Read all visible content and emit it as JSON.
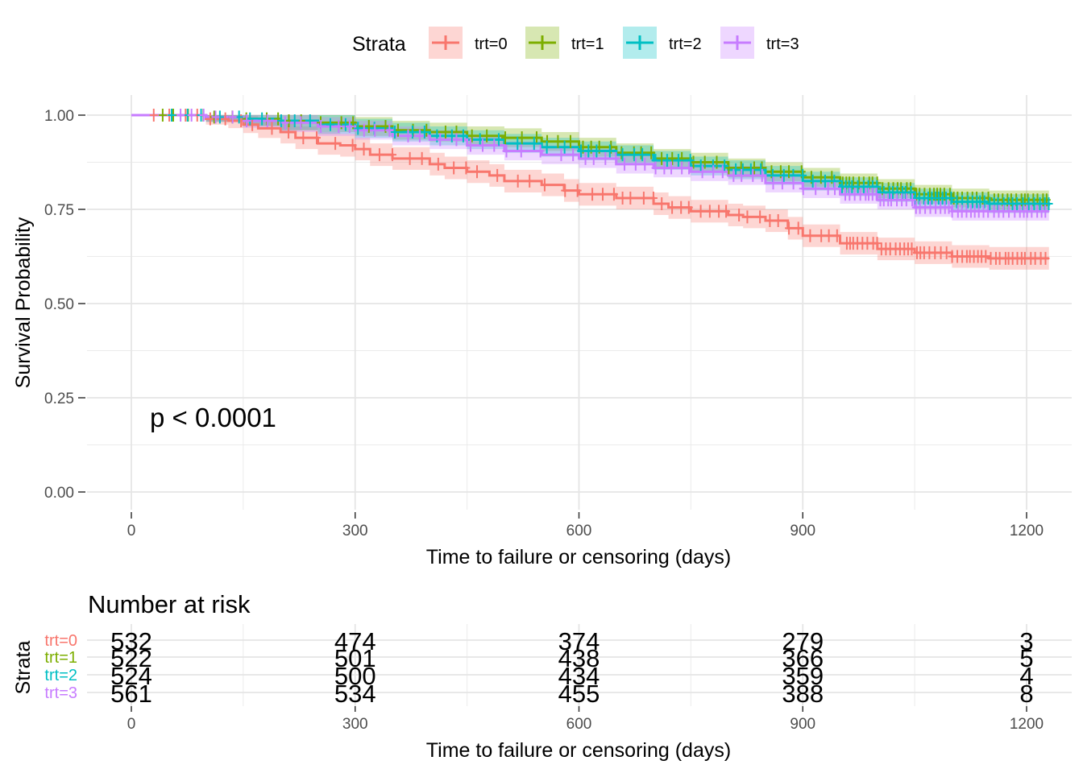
{
  "chart_data": [
    {
      "type": "line",
      "subtype": "kaplan-meier",
      "xlabel": "Time to failure or censoring (days)",
      "ylabel": "Survival Probability",
      "xlim": [
        -20,
        1250
      ],
      "ylim": [
        0,
        1
      ],
      "x_ticks": [
        "0",
        "300",
        "600",
        "900",
        "1200"
      ],
      "y_ticks": [
        "0.00",
        "0.25",
        "0.50",
        "0.75",
        "1.00"
      ],
      "grid": true,
      "annotation": "p < 0.0001",
      "legend": {
        "title": "Strata",
        "position": "top",
        "entries": [
          "trt=0",
          "trt=1",
          "trt=2",
          "trt=3"
        ]
      },
      "series": [
        {
          "name": "trt=0",
          "color": "#F8766D",
          "x": [
            0,
            100,
            130,
            150,
            170,
            200,
            220,
            250,
            280,
            300,
            320,
            350,
            400,
            420,
            450,
            480,
            500,
            550,
            580,
            600,
            650,
            700,
            720,
            750,
            800,
            820,
            850,
            880,
            900,
            950,
            1000,
            1050,
            1100,
            1150,
            1230
          ],
          "y": [
            1.0,
            0.99,
            0.985,
            0.975,
            0.965,
            0.955,
            0.94,
            0.925,
            0.92,
            0.91,
            0.895,
            0.885,
            0.87,
            0.86,
            0.85,
            0.84,
            0.825,
            0.815,
            0.8,
            0.79,
            0.78,
            0.765,
            0.755,
            0.745,
            0.735,
            0.73,
            0.72,
            0.7,
            0.68,
            0.66,
            0.645,
            0.635,
            0.625,
            0.62,
            0.62
          ],
          "ci_width": 0.03
        },
        {
          "name": "trt=1",
          "color": "#7CAE00",
          "x": [
            0,
            100,
            150,
            200,
            250,
            300,
            350,
            400,
            450,
            500,
            550,
            600,
            650,
            700,
            750,
            800,
            850,
            900,
            950,
            1000,
            1050,
            1100,
            1150,
            1230
          ],
          "y": [
            1.0,
            0.995,
            0.99,
            0.985,
            0.98,
            0.97,
            0.96,
            0.955,
            0.945,
            0.94,
            0.93,
            0.915,
            0.9,
            0.885,
            0.875,
            0.86,
            0.85,
            0.835,
            0.82,
            0.805,
            0.79,
            0.78,
            0.775,
            0.775
          ],
          "ci_width": 0.025
        },
        {
          "name": "trt=2",
          "color": "#00BFC4",
          "x": [
            0,
            100,
            150,
            200,
            250,
            300,
            350,
            400,
            450,
            500,
            550,
            600,
            650,
            700,
            750,
            800,
            850,
            900,
            950,
            1000,
            1050,
            1100,
            1150,
            1230
          ],
          "y": [
            1.0,
            0.995,
            0.99,
            0.985,
            0.975,
            0.965,
            0.955,
            0.945,
            0.935,
            0.925,
            0.915,
            0.905,
            0.895,
            0.88,
            0.865,
            0.855,
            0.84,
            0.825,
            0.81,
            0.795,
            0.78,
            0.77,
            0.765,
            0.76
          ],
          "ci_width": 0.025
        },
        {
          "name": "trt=3",
          "color": "#C77CFF",
          "x": [
            0,
            100,
            150,
            200,
            250,
            300,
            350,
            400,
            450,
            500,
            550,
            600,
            650,
            700,
            750,
            800,
            850,
            900,
            950,
            1000,
            1050,
            1100,
            1150,
            1230
          ],
          "y": [
            1.0,
            0.995,
            0.985,
            0.98,
            0.97,
            0.96,
            0.945,
            0.935,
            0.92,
            0.905,
            0.895,
            0.885,
            0.87,
            0.86,
            0.85,
            0.84,
            0.82,
            0.805,
            0.79,
            0.775,
            0.755,
            0.745,
            0.745,
            0.745
          ],
          "ci_width": 0.025
        }
      ]
    },
    {
      "type": "table",
      "title": "Number at risk",
      "xlabel": "Time to failure or censoring (days)",
      "ylabel": "Strata",
      "x_ticks": [
        "0",
        "300",
        "600",
        "900",
        "1200"
      ],
      "times": [
        0,
        300,
        600,
        900,
        1200
      ],
      "rows": [
        {
          "name": "trt=0",
          "color": "#F8766D",
          "values": [
            "532",
            "474",
            "374",
            "279",
            "3"
          ]
        },
        {
          "name": "trt=1",
          "color": "#7CAE00",
          "values": [
            "522",
            "501",
            "438",
            "366",
            "5"
          ]
        },
        {
          "name": "trt=2",
          "color": "#00BFC4",
          "values": [
            "524",
            "500",
            "434",
            "359",
            "4"
          ]
        },
        {
          "name": "trt=3",
          "color": "#C77CFF",
          "values": [
            "561",
            "534",
            "455",
            "388",
            "8"
          ]
        }
      ]
    }
  ]
}
